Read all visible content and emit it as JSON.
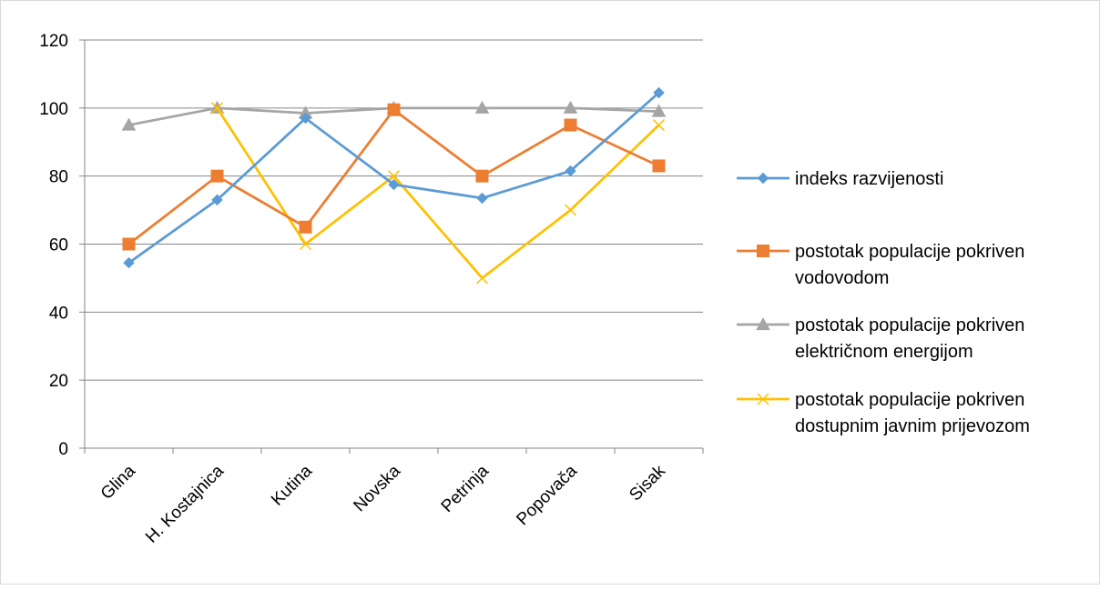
{
  "chart_data": {
    "type": "line",
    "title": "",
    "xlabel": "",
    "ylabel": "",
    "categories": [
      "Glina",
      "H. Kostajnica",
      "Kutina",
      "Novska",
      "Petrinja",
      "Popovača",
      "Sisak"
    ],
    "ylim": [
      0,
      120
    ],
    "yticks": [
      0,
      20,
      40,
      60,
      80,
      100,
      120
    ],
    "grid": true,
    "legend_position": "right",
    "series": [
      {
        "name": "indeks razvijenosti",
        "color": "#5b9bd5",
        "marker": "diamond",
        "values": [
          54.5,
          73,
          97,
          77.5,
          73.5,
          81.5,
          104.5
        ]
      },
      {
        "name": "postotak populacije pokriven vodovodom",
        "name_lines": [
          "postotak populacije pokriven",
          "vodovodom"
        ],
        "color": "#ed7d31",
        "marker": "square",
        "values": [
          60,
          80,
          65,
          99.5,
          80,
          95,
          83
        ]
      },
      {
        "name": "postotak populacije pokriven električnom energijom",
        "name_lines": [
          "postotak populacije pokriven",
          "električnom energijom"
        ],
        "color": "#a5a5a5",
        "marker": "triangle",
        "values": [
          95,
          100,
          98.5,
          100,
          100,
          100,
          99
        ]
      },
      {
        "name": "postotak populacije pokriven dostupnim javnim prijevozom",
        "name_lines": [
          "postotak populacije pokriven",
          "dostupnim javnim prijevozom"
        ],
        "color": "#ffc000",
        "marker": "x",
        "values": [
          null,
          100,
          60,
          80,
          50,
          70,
          95
        ]
      }
    ]
  }
}
